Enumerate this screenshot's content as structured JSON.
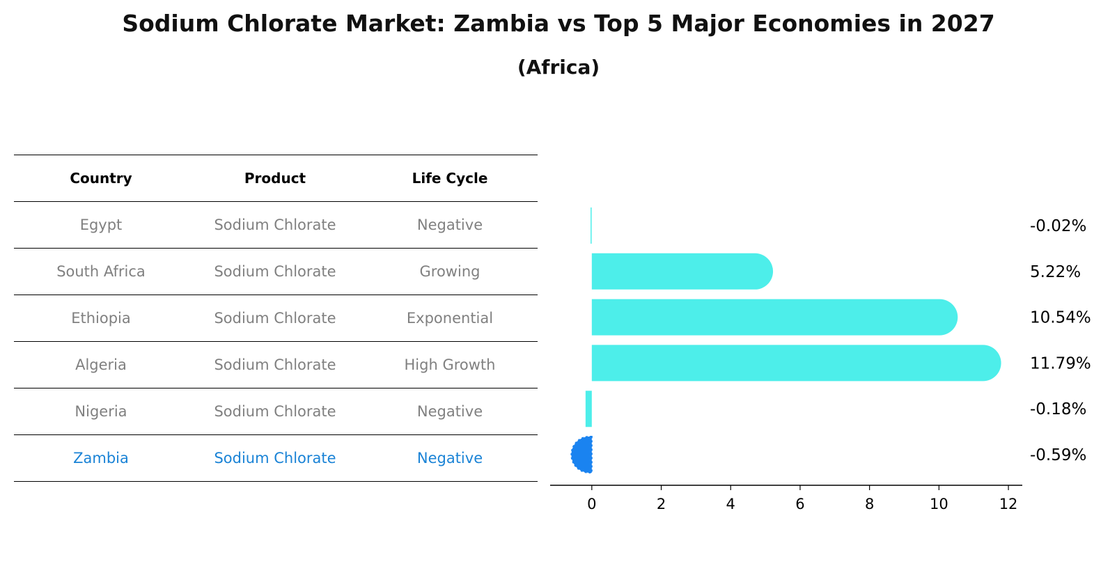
{
  "header": {
    "title": "Sodium Chlorate Market: Zambia vs Top 5 Major Economies in 2027",
    "subtitle": "(Africa)"
  },
  "table": {
    "columns": [
      "Country",
      "Product",
      "Life Cycle"
    ],
    "rows": [
      {
        "country": "Egypt",
        "product": "Sodium Chlorate",
        "cycle": "Negative"
      },
      {
        "country": "South Africa",
        "product": "Sodium Chlorate",
        "cycle": "Growing"
      },
      {
        "country": "Ethiopia",
        "product": "Sodium Chlorate",
        "cycle": "Exponential"
      },
      {
        "country": "Algeria",
        "product": "Sodium Chlorate",
        "cycle": "High Growth"
      },
      {
        "country": "Nigeria",
        "product": "Sodium Chlorate",
        "cycle": "Negative"
      },
      {
        "country": "Zambia",
        "product": "Sodium Chlorate",
        "cycle": "Negative"
      }
    ]
  },
  "chart_data": {
    "type": "bar",
    "orientation": "horizontal",
    "categories": [
      "Egypt",
      "South Africa",
      "Ethiopia",
      "Algeria",
      "Nigeria",
      "Zambia"
    ],
    "values": [
      -0.02,
      5.22,
      10.54,
      11.79,
      -0.18,
      -0.59
    ],
    "value_labels": [
      "-0.02%",
      "5.22%",
      "10.54%",
      "11.79%",
      "-0.18%",
      "-0.59%"
    ],
    "highlight": "Zambia",
    "xlim": [
      -1.2,
      12.4
    ],
    "xticks": [
      0,
      2,
      4,
      6,
      8,
      10,
      12
    ],
    "xtick_labels": [
      "0",
      "2",
      "4",
      "6",
      "8",
      "10",
      "12"
    ],
    "grid": false,
    "colors": {
      "default": "#4deeea",
      "highlight": "#1a83f0"
    }
  }
}
